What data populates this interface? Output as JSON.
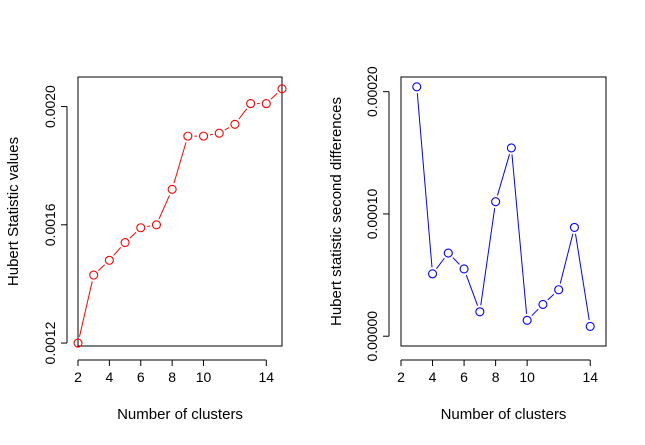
{
  "chart_data": [
    {
      "type": "line",
      "xlabel": "Number of clusters",
      "ylabel": "Hubert Statistic values",
      "xlim": [
        2,
        15
      ],
      "ylim": [
        0.00119,
        0.0021
      ],
      "xticks": [
        2,
        4,
        6,
        8,
        10,
        14
      ],
      "xtick_labels": [
        "2",
        "4",
        "6",
        "8",
        "10",
        "14"
      ],
      "yticks": [
        0.0012,
        0.0016,
        0.002
      ],
      "ytick_labels": [
        "0.0012",
        "0.0016",
        "0.0020"
      ],
      "grid": false,
      "color": "#ff0000",
      "marker": "open-circle",
      "x": [
        2,
        3,
        4,
        5,
        6,
        7,
        8,
        9,
        10,
        11,
        12,
        13,
        14,
        15
      ],
      "y": [
        0.0012,
        0.00143,
        0.00148,
        0.00154,
        0.00159,
        0.0016,
        0.00172,
        0.0019,
        0.0019,
        0.00191,
        0.00194,
        0.00201,
        0.00201,
        0.00206
      ]
    },
    {
      "type": "line",
      "xlabel": "Number of clusters",
      "ylabel": "Hubert statistic second differences",
      "xlim": [
        2,
        15
      ],
      "ylim": [
        -8e-06,
        0.000212
      ],
      "xticks": [
        2,
        4,
        6,
        8,
        10,
        14
      ],
      "xtick_labels": [
        "2",
        "4",
        "6",
        "8",
        "10",
        "14"
      ],
      "yticks": [
        0.0,
        0.0001,
        0.0002
      ],
      "ytick_labels": [
        "0.00000",
        "0.00010",
        "0.00020"
      ],
      "grid": false,
      "color": "#0000ff",
      "marker": "open-circle",
      "x": [
        3,
        4,
        5,
        6,
        7,
        8,
        9,
        10,
        11,
        12,
        13,
        14
      ],
      "y": [
        0.000204,
        5.1e-05,
        6.8e-05,
        5.5e-05,
        2e-05,
        0.00011,
        0.000154,
        1.3e-05,
        2.6e-05,
        3.8e-05,
        8.9e-05,
        8e-06
      ]
    }
  ]
}
